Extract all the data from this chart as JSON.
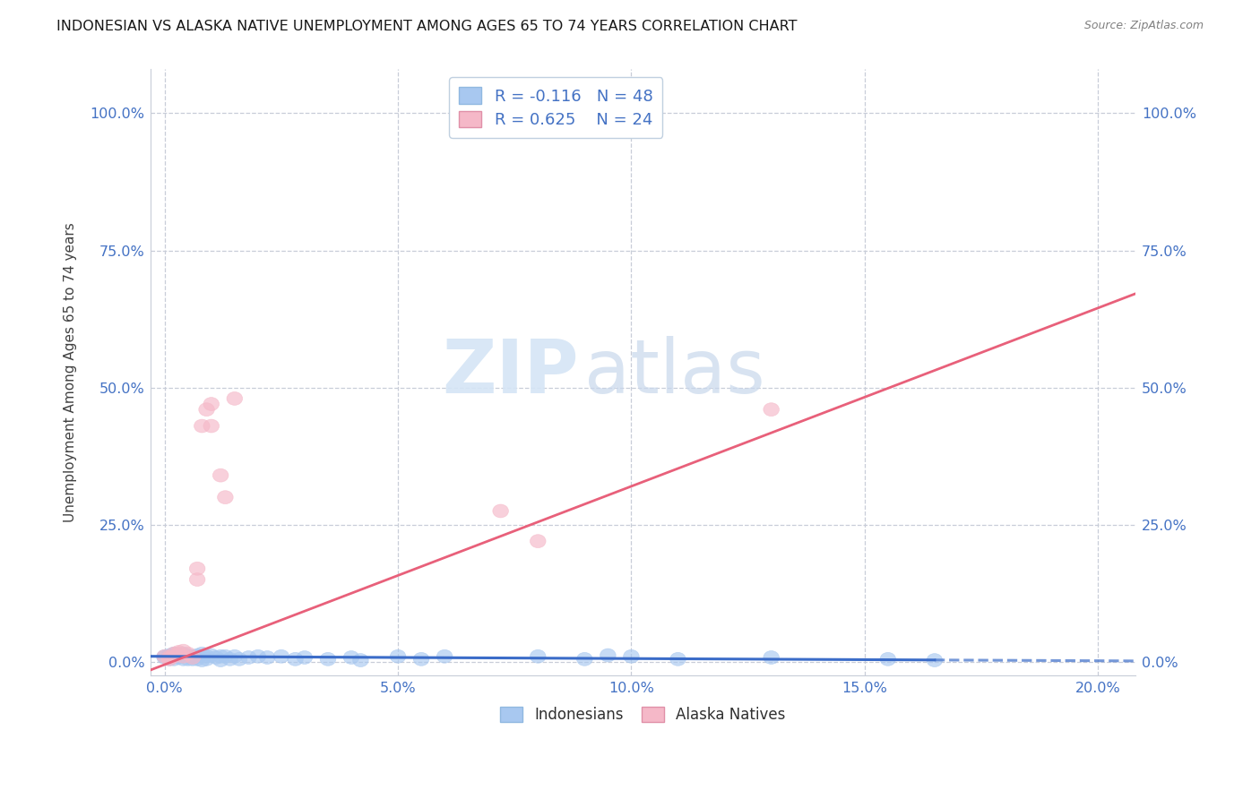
{
  "title": "INDONESIAN VS ALASKA NATIVE UNEMPLOYMENT AMONG AGES 65 TO 74 YEARS CORRELATION CHART",
  "source": "Source: ZipAtlas.com",
  "ylabel": "Unemployment Among Ages 65 to 74 years",
  "xlabel_vals": [
    0.0,
    0.05,
    0.1,
    0.15,
    0.2
  ],
  "ylabel_vals": [
    0.0,
    0.25,
    0.5,
    0.75,
    1.0
  ],
  "xlim": [
    -0.003,
    0.208
  ],
  "ylim": [
    -0.025,
    1.08
  ],
  "watermark_zip": "ZIP",
  "watermark_atlas": "atlas",
  "indonesian_color": "#A8C8F0",
  "alaska_color": "#F5B8C8",
  "indonesian_line_color": "#3B6CC8",
  "alaska_line_color": "#E8607A",
  "indo_line_slope": -0.04,
  "indo_line_intercept": 0.01,
  "alaska_line_slope": 3.25,
  "alaska_line_intercept": -0.005,
  "indonesian_dots": [
    [
      0.0,
      0.01
    ],
    [
      0.0,
      0.008
    ],
    [
      0.001,
      0.012
    ],
    [
      0.001,
      0.005
    ],
    [
      0.002,
      0.015
    ],
    [
      0.002,
      0.005
    ],
    [
      0.003,
      0.012
    ],
    [
      0.003,
      0.008
    ],
    [
      0.004,
      0.015
    ],
    [
      0.004,
      0.005
    ],
    [
      0.005,
      0.012
    ],
    [
      0.005,
      0.005
    ],
    [
      0.006,
      0.01
    ],
    [
      0.006,
      0.005
    ],
    [
      0.007,
      0.012
    ],
    [
      0.007,
      0.005
    ],
    [
      0.008,
      0.015
    ],
    [
      0.008,
      0.003
    ],
    [
      0.009,
      0.01
    ],
    [
      0.009,
      0.005
    ],
    [
      0.01,
      0.012
    ],
    [
      0.011,
      0.008
    ],
    [
      0.012,
      0.01
    ],
    [
      0.012,
      0.003
    ],
    [
      0.013,
      0.01
    ],
    [
      0.014,
      0.005
    ],
    [
      0.015,
      0.01
    ],
    [
      0.016,
      0.005
    ],
    [
      0.018,
      0.008
    ],
    [
      0.02,
      0.01
    ],
    [
      0.022,
      0.008
    ],
    [
      0.025,
      0.01
    ],
    [
      0.028,
      0.005
    ],
    [
      0.03,
      0.008
    ],
    [
      0.035,
      0.005
    ],
    [
      0.04,
      0.008
    ],
    [
      0.042,
      0.003
    ],
    [
      0.05,
      0.01
    ],
    [
      0.055,
      0.005
    ],
    [
      0.06,
      0.01
    ],
    [
      0.08,
      0.01
    ],
    [
      0.09,
      0.005
    ],
    [
      0.095,
      0.012
    ],
    [
      0.1,
      0.01
    ],
    [
      0.11,
      0.005
    ],
    [
      0.13,
      0.008
    ],
    [
      0.155,
      0.005
    ],
    [
      0.165,
      0.003
    ]
  ],
  "alaska_dots": [
    [
      0.0,
      0.01
    ],
    [
      0.001,
      0.008
    ],
    [
      0.001,
      0.005
    ],
    [
      0.002,
      0.015
    ],
    [
      0.002,
      0.01
    ],
    [
      0.003,
      0.018
    ],
    [
      0.003,
      0.015
    ],
    [
      0.004,
      0.02
    ],
    [
      0.004,
      0.01
    ],
    [
      0.005,
      0.015
    ],
    [
      0.006,
      0.008
    ],
    [
      0.007,
      0.15
    ],
    [
      0.007,
      0.17
    ],
    [
      0.008,
      0.43
    ],
    [
      0.009,
      0.46
    ],
    [
      0.01,
      0.47
    ],
    [
      0.01,
      0.43
    ],
    [
      0.012,
      0.34
    ],
    [
      0.013,
      0.3
    ],
    [
      0.015,
      0.48
    ],
    [
      0.072,
      0.275
    ],
    [
      0.08,
      0.22
    ],
    [
      0.1,
      0.99
    ],
    [
      0.13,
      0.46
    ]
  ]
}
